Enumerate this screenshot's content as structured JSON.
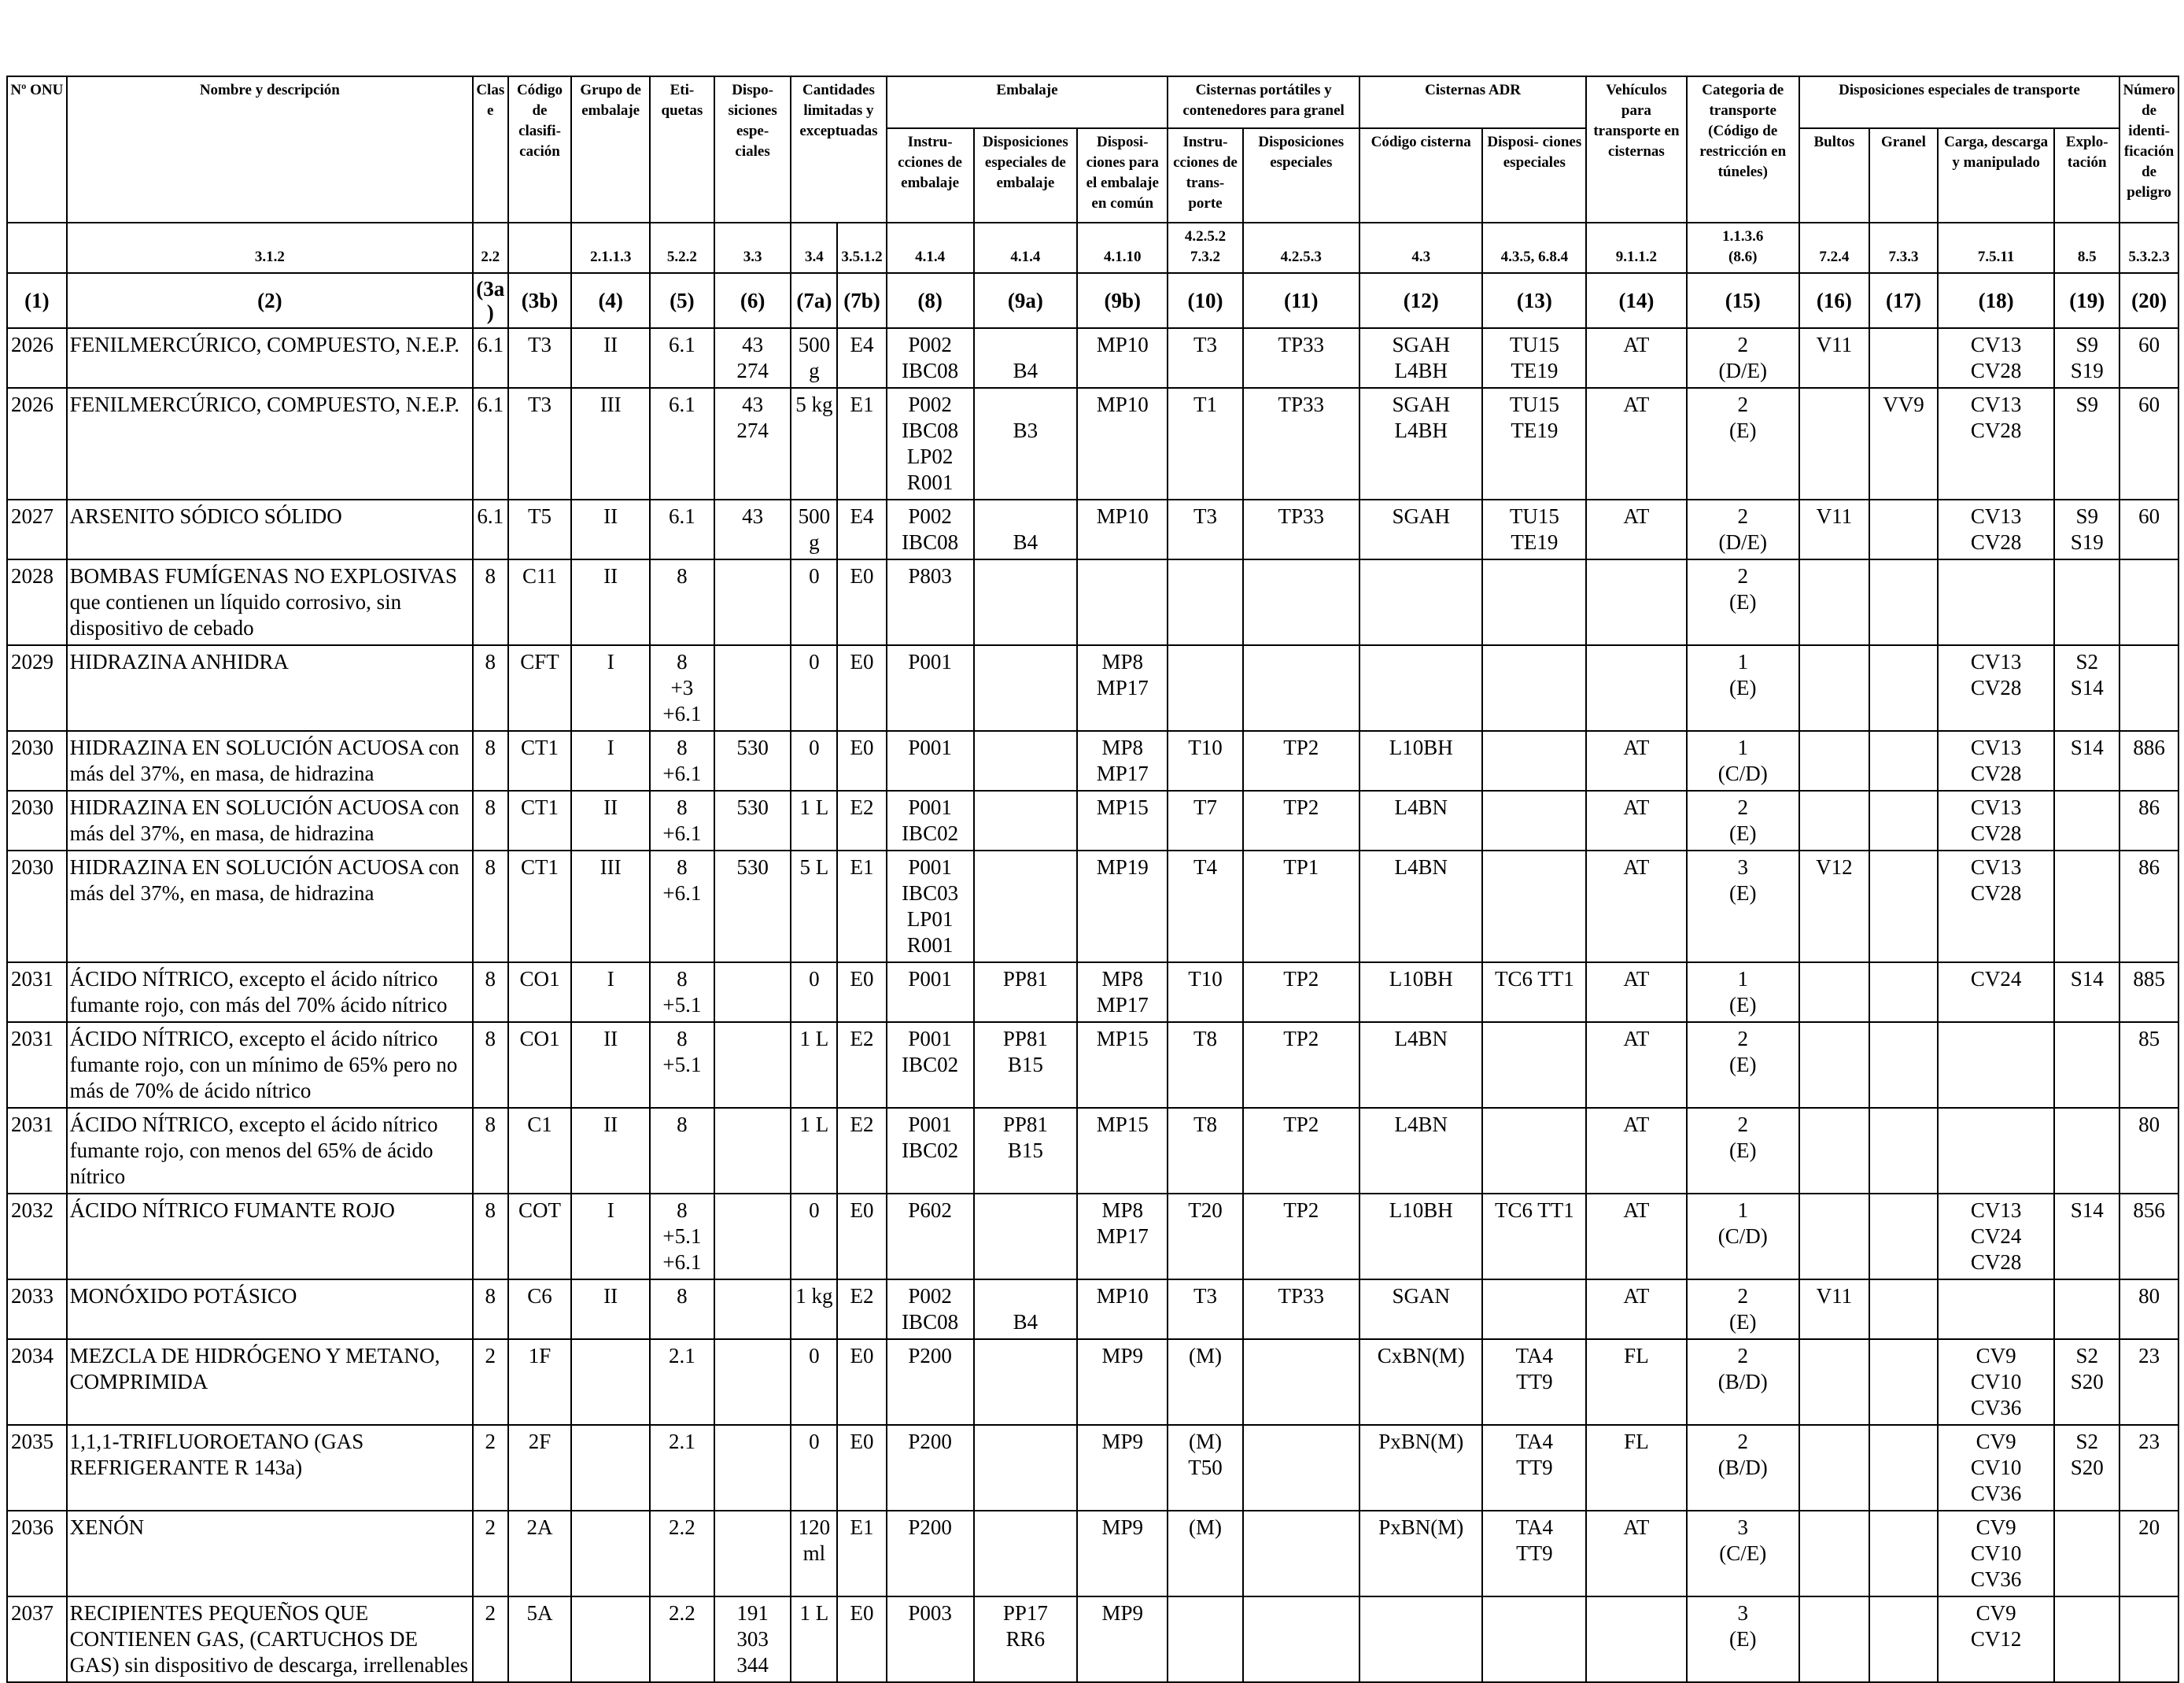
{
  "header": {
    "col1": "Nº ONU",
    "col2": "Nombre y descripción",
    "col3a": "Clase",
    "col3b": "Código de clasifi- cación",
    "col4": "Grupo de embalaje",
    "col5": "Eti- quetas",
    "col6": "Dispo- siciones espe- ciales",
    "col7": "Cantidades limitadas y exceptuadas",
    "embalaje": "Embalaje",
    "col8": "Instru- cciones de embalaje",
    "col9a": "Disposiciones especiales de embalaje",
    "col9b": "Disposi- ciones para el embalaje en común",
    "cisternas_portatiles": "Cisternas portátiles y contenedores para granel",
    "col10": "Instru- cciones de trans- porte",
    "col11": "Disposiciones especiales",
    "cisternas_adr": "Cisternas ADR",
    "col12": "Código cisterna",
    "col13": "Disposi- ciones especiales",
    "col14": "Vehículos para transporte en cisternas",
    "col15": "Categoria de transporte (Código de restricción en túneles)",
    "disp_transporte": "Disposiciones especiales de transporte",
    "col16": "Bultos",
    "col17": "Granel",
    "col18": "Carga, descarga y manipulado",
    "col19": "Explo- tación",
    "col20": "Número de identi- ficación de peligro"
  },
  "refs": [
    "",
    "3.1.2",
    "2.2",
    "",
    "2.1.1.3",
    "5.2.2",
    "3.3",
    "3.4",
    "3.5.1.2",
    "4.1.4",
    "4.1.4",
    "4.1.10",
    "4.2.5.2\n7.3.2",
    "4.2.5.3",
    "4.3",
    "4.3.5, 6.8.4",
    "9.1.1.2",
    "1.1.3.6\n(8.6)",
    "7.2.4",
    "7.3.3",
    "7.5.11",
    "8.5",
    "5.3.2.3"
  ],
  "column_numbers": [
    "(1)",
    "(2)",
    "(3a)",
    "(3b)",
    "(4)",
    "(5)",
    "(6)",
    "(7a)",
    "(7b)",
    "(8)",
    "(9a)",
    "(9b)",
    "(10)",
    "(11)",
    "(12)",
    "(13)",
    "(14)",
    "(15)",
    "(16)",
    "(17)",
    "(18)",
    "(19)",
    "(20)"
  ],
  "rows": [
    [
      "2026",
      "FENILMERCÚRICO, COMPUESTO, N.E.P.",
      "6.1",
      "T3",
      "II",
      "6.1",
      "43\n274",
      "500\ng",
      "E4",
      "P002\nIBC08",
      "\nB4",
      "MP10",
      "T3",
      "TP33",
      "SGAH\nL4BH",
      "TU15\nTE19",
      "AT",
      "2\n(D/E)",
      "V11",
      "",
      "CV13\nCV28",
      "S9\nS19",
      "60"
    ],
    [
      "2026",
      "FENILMERCÚRICO, COMPUESTO, N.E.P.",
      "6.1",
      "T3",
      "III",
      "6.1",
      "43\n274",
      "5 kg",
      "E1",
      "P002\nIBC08\nLP02\nR001",
      "\nB3",
      "MP10",
      "T1",
      "TP33",
      "SGAH\nL4BH",
      "TU15\nTE19",
      "AT",
      "2\n(E)",
      "",
      "VV9",
      "CV13\nCV28",
      "S9",
      "60"
    ],
    [
      "2027",
      "ARSENITO SÓDICO SÓLIDO",
      "6.1",
      "T5",
      "II",
      "6.1",
      "43",
      "500\ng",
      "E4",
      "P002\nIBC08",
      "\nB4",
      "MP10",
      "T3",
      "TP33",
      "SGAH",
      "TU15\nTE19",
      "AT",
      "2\n(D/E)",
      "V11",
      "",
      "CV13\nCV28",
      "S9\nS19",
      "60"
    ],
    [
      "2028",
      "BOMBAS FUMÍGENAS NO EXPLOSIVAS que contienen un líquido corrosivo, sin dispositivo de cebado",
      "8",
      "C11",
      "II",
      "8",
      "",
      "0",
      "E0",
      "P803",
      "",
      "",
      "",
      "",
      "",
      "",
      "",
      "2\n(E)",
      "",
      "",
      "",
      "",
      ""
    ],
    [
      "2029",
      "HIDRAZINA ANHIDRA",
      "8",
      "CFT",
      "I",
      "8\n+3\n+6.1",
      "",
      "0",
      "E0",
      "P001",
      "",
      "MP8\nMP17",
      "",
      "",
      "",
      "",
      "",
      "1\n(E)",
      "",
      "",
      "CV13\nCV28",
      "S2\nS14",
      ""
    ],
    [
      "2030",
      "HIDRAZINA EN SOLUCIÓN ACUOSA con más del 37%, en masa, de hidrazina",
      "8",
      "CT1",
      "I",
      "8\n+6.1",
      "530",
      "0",
      "E0",
      "P001",
      "",
      "MP8\nMP17",
      "T10",
      "TP2",
      "L10BH",
      "",
      "AT",
      "1\n(C/D)",
      "",
      "",
      "CV13\nCV28",
      "S14",
      "886"
    ],
    [
      "2030",
      "HIDRAZINA EN SOLUCIÓN ACUOSA con más del 37%, en masa, de hidrazina",
      "8",
      "CT1",
      "II",
      "8\n+6.1",
      "530",
      "1 L",
      "E2",
      "P001\nIBC02",
      "",
      "MP15",
      "T7",
      "TP2",
      "L4BN",
      "",
      "AT",
      "2\n(E)",
      "",
      "",
      "CV13\nCV28",
      "",
      "86"
    ],
    [
      "2030",
      "HIDRAZINA EN SOLUCIÓN ACUOSA con más del 37%, en masa, de hidrazina",
      "8",
      "CT1",
      "III",
      "8\n+6.1",
      "530",
      "5 L",
      "E1",
      "P001\nIBC03\nLP01\nR001",
      "",
      "MP19",
      "T4",
      "TP1",
      "L4BN",
      "",
      "AT",
      "3\n(E)",
      "V12",
      "",
      "CV13\nCV28",
      "",
      "86"
    ],
    [
      "2031",
      "ÁCIDO NÍTRICO, excepto el ácido nítrico fumante rojo, con más del 70% ácido nítrico",
      "8",
      "CO1",
      "I",
      "8\n+5.1",
      "",
      "0",
      "E0",
      "P001",
      "PP81",
      "MP8\nMP17",
      "T10",
      "TP2",
      "L10BH",
      "TC6 TT1",
      "AT",
      "1\n(E)",
      "",
      "",
      "CV24",
      "S14",
      "885"
    ],
    [
      "2031",
      "ÁCIDO NÍTRICO, excepto el ácido nítrico fumante rojo, con un mínimo de 65% pero no más de 70% de ácido nítrico",
      "8",
      "CO1",
      "II",
      "8\n+5.1",
      "",
      "1 L",
      "E2",
      "P001\nIBC02",
      "PP81\nB15",
      "MP15",
      "T8",
      "TP2",
      "L4BN",
      "",
      "AT",
      "2\n(E)",
      "",
      "",
      "",
      "",
      "85"
    ],
    [
      "2031",
      "ÁCIDO NÍTRICO, excepto el ácido nítrico fumante rojo, con menos del 65% de ácido nítrico",
      "8",
      "C1",
      "II",
      "8",
      "",
      "1 L",
      "E2",
      "P001\nIBC02",
      "PP81\nB15",
      "MP15",
      "T8",
      "TP2",
      "L4BN",
      "",
      "AT",
      "2\n(E)",
      "",
      "",
      "",
      "",
      "80"
    ],
    [
      "2032",
      "ÁCIDO NÍTRICO FUMANTE ROJO",
      "8",
      "COT",
      "I",
      "8\n+5.1\n+6.1",
      "",
      "0",
      "E0",
      "P602",
      "",
      "MP8\nMP17",
      "T20",
      "TP2",
      "L10BH",
      "TC6 TT1",
      "AT",
      "1\n(C/D)",
      "",
      "",
      "CV13\nCV24\nCV28",
      "S14",
      "856"
    ],
    [
      "2033",
      "MONÓXIDO POTÁSICO",
      "8",
      "C6",
      "II",
      "8",
      "",
      "1 kg",
      "E2",
      "P002\nIBC08",
      "\nB4",
      "MP10",
      "T3",
      "TP33",
      "SGAN",
      "",
      "AT",
      "2\n(E)",
      "V11",
      "",
      "",
      "",
      "80"
    ],
    [
      "2034",
      "MEZCLA DE HIDRÓGENO Y METANO, COMPRIMIDA",
      "2",
      "1F",
      "",
      "2.1",
      "",
      "0",
      "E0",
      "P200",
      "",
      "MP9",
      "(M)",
      "",
      "CxBN(M)",
      "TA4\nTT9",
      "FL",
      "2\n(B/D)",
      "",
      "",
      "CV9\nCV10\nCV36",
      "S2\nS20",
      "23"
    ],
    [
      "2035",
      "1,1,1-TRIFLUOROETANO (GAS REFRIGERANTE R 143a)",
      "2",
      "2F",
      "",
      "2.1",
      "",
      "0",
      "E0",
      "P200",
      "",
      "MP9",
      "(M)\nT50",
      "",
      "PxBN(M)",
      "TA4\nTT9",
      "FL",
      "2\n(B/D)",
      "",
      "",
      "CV9\nCV10\nCV36",
      "S2\nS20",
      "23"
    ],
    [
      "2036",
      "XENÓN",
      "2",
      "2A",
      "",
      "2.2",
      "",
      "120\nml",
      "E1",
      "P200",
      "",
      "MP9",
      "(M)",
      "",
      "PxBN(M)",
      "TA4\nTT9",
      "AT",
      "3\n(C/E)",
      "",
      "",
      "CV9\nCV10\nCV36",
      "",
      "20"
    ],
    [
      "2037",
      "RECIPIENTES PEQUEÑOS QUE CONTIENEN GAS, (CARTUCHOS DE GAS) sin dispositivo de descarga, irrellenables",
      "2",
      "5A",
      "",
      "2.2",
      "191\n303\n344",
      "1 L",
      "E0",
      "P003",
      "PP17\nRR6",
      "MP9",
      "",
      "",
      "",
      "",
      "",
      "3\n(E)",
      "",
      "",
      "CV9\nCV12",
      "",
      ""
    ]
  ]
}
